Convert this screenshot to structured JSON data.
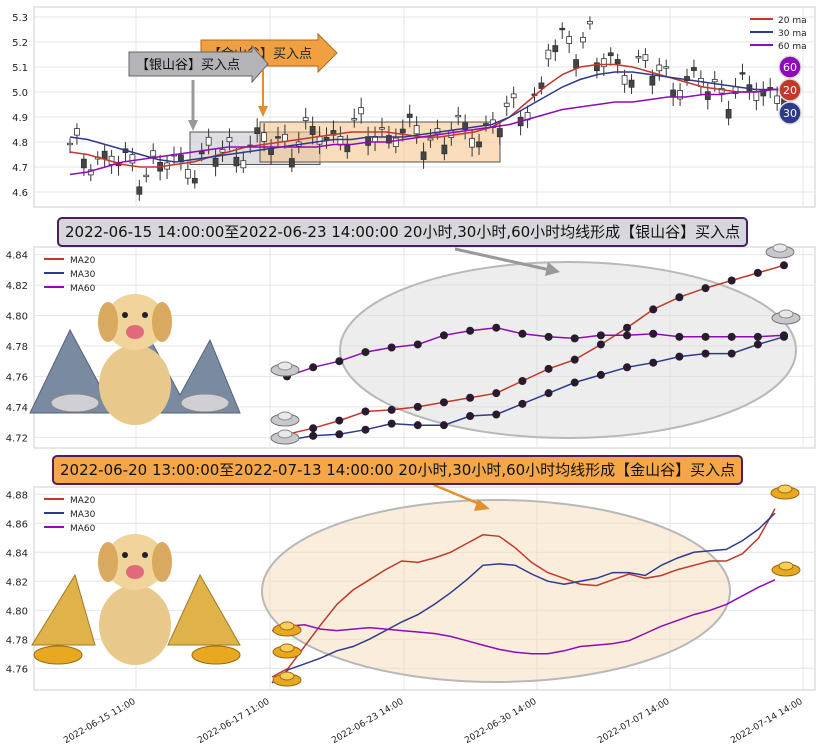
{
  "top_chart": {
    "legend": [
      "20 ma",
      "30 ma",
      "60 ma"
    ],
    "badges": [
      "60",
      "20",
      "30"
    ],
    "callouts": {
      "silver": "【银山谷】买入点",
      "gold": "【金山谷】买入点"
    },
    "colors": {
      "ma20": "#c0392b",
      "ma30": "#2e3a8c",
      "ma60": "#8e0bb8",
      "silver_box": "#cfcfd6",
      "gold_box": "#f5c68f"
    }
  },
  "silver_panel": {
    "banner": "2022-06-15 14:00:00至2022-06-23 14:00:00 20小时,30小时,60小时均线形成【银山谷】买入点",
    "legend": [
      "MA20",
      "MA30",
      "MA60"
    ]
  },
  "gold_panel": {
    "banner": "2022-06-20 13:00:00至2022-07-13 14:00:00 20小时,30小时,60小时均线形成【金山谷】买入点",
    "legend": [
      "MA20",
      "MA30",
      "MA60"
    ]
  },
  "x_axis_labels": [
    "2022-06-15 11:00",
    "2022-06-17 11:00",
    "2022-06-23 14:00",
    "2022-06-30 14:00",
    "2022-07-07 14:00",
    "2022-07-14 14:00"
  ],
  "chart_data": [
    {
      "type": "candlestick",
      "yticks": [
        4.6,
        4.7,
        4.8,
        4.9,
        5.0,
        5.1,
        5.2,
        5.3
      ],
      "ylim": [
        4.54,
        5.34
      ],
      "series": [
        {
          "name": "20 ma",
          "values": [
            4.76,
            4.75,
            4.73,
            4.71,
            4.7,
            4.7,
            4.71,
            4.72,
            4.74,
            4.76,
            4.78,
            4.79,
            4.8,
            4.81,
            4.82,
            4.83,
            4.84,
            4.84,
            4.84,
            4.83,
            4.82,
            4.82,
            4.83,
            4.84,
            4.86,
            4.9,
            4.96,
            5.02,
            5.07,
            5.1,
            5.11,
            5.11,
            5.1,
            5.08,
            5.06,
            5.04,
            5.02,
            5.01,
            5.0,
            5.0,
            5.01,
            5.01
          ]
        },
        {
          "name": "30 ma",
          "values": [
            4.82,
            4.81,
            4.79,
            4.77,
            4.75,
            4.73,
            4.72,
            4.73,
            4.74,
            4.75,
            4.76,
            4.77,
            4.78,
            4.79,
            4.8,
            4.81,
            4.81,
            4.82,
            4.82,
            4.82,
            4.83,
            4.84,
            4.85,
            4.86,
            4.87,
            4.9,
            4.94,
            4.98,
            5.02,
            5.05,
            5.07,
            5.08,
            5.08,
            5.07,
            5.06,
            5.05,
            5.04,
            5.03,
            5.02,
            5.01,
            5.01,
            5.01
          ]
        },
        {
          "name": "60 ma",
          "values": [
            4.67,
            4.68,
            4.7,
            4.72,
            4.73,
            4.74,
            4.75,
            4.76,
            4.77,
            4.78,
            4.78,
            4.78,
            4.78,
            4.78,
            4.78,
            4.79,
            4.79,
            4.8,
            4.8,
            4.81,
            4.82,
            4.83,
            4.84,
            4.85,
            4.86,
            4.87,
            4.89,
            4.91,
            4.93,
            4.94,
            4.95,
            4.96,
            4.96,
            4.97,
            4.98,
            4.98,
            4.99,
            4.99,
            5.0,
            5.0,
            5.01,
            5.01
          ]
        }
      ]
    },
    {
      "type": "line",
      "yticks": [
        4.72,
        4.74,
        4.76,
        4.78,
        4.8,
        4.82,
        4.84
      ],
      "ylim": [
        4.713,
        4.845
      ],
      "series": [
        {
          "name": "MA20",
          "values": [
            4.722,
            4.726,
            4.731,
            4.737,
            4.738,
            4.74,
            4.743,
            4.746,
            4.749,
            4.757,
            4.765,
            4.771,
            4.781,
            4.792,
            4.804,
            4.812,
            4.818,
            4.823,
            4.828,
            4.833
          ]
        },
        {
          "name": "MA30",
          "values": [
            4.718,
            4.721,
            4.722,
            4.725,
            4.729,
            4.728,
            4.728,
            4.734,
            4.735,
            4.742,
            4.749,
            4.756,
            4.761,
            4.766,
            4.769,
            4.773,
            4.775,
            4.775,
            4.781,
            4.786
          ]
        },
        {
          "name": "MA60",
          "values": [
            4.76,
            4.766,
            4.77,
            4.776,
            4.779,
            4.781,
            4.787,
            4.79,
            4.792,
            4.788,
            4.786,
            4.785,
            4.787,
            4.787,
            4.788,
            4.786,
            4.786,
            4.786,
            4.786,
            4.787
          ]
        }
      ]
    },
    {
      "type": "line",
      "yticks": [
        4.76,
        4.78,
        4.8,
        4.82,
        4.84,
        4.86,
        4.88
      ],
      "ylim": [
        4.745,
        4.885
      ],
      "series": [
        {
          "name": "MA20",
          "values": [
            4.754,
            4.76,
            4.775,
            4.79,
            4.804,
            4.814,
            4.821,
            4.828,
            4.834,
            4.833,
            4.836,
            4.84,
            4.846,
            4.852,
            4.851,
            4.843,
            4.833,
            4.826,
            4.822,
            4.818,
            4.817,
            4.821,
            4.825,
            4.822,
            4.824,
            4.828,
            4.831,
            4.834,
            4.834,
            4.839,
            4.85,
            4.87
          ]
        },
        {
          "name": "MA30",
          "values": [
            4.75,
            4.759,
            4.763,
            4.767,
            4.772,
            4.775,
            4.78,
            4.786,
            4.792,
            4.797,
            4.804,
            4.812,
            4.821,
            4.831,
            4.832,
            4.831,
            4.825,
            4.82,
            4.818,
            4.82,
            4.822,
            4.826,
            4.826,
            4.824,
            4.831,
            4.836,
            4.84,
            4.841,
            4.842,
            4.848,
            4.856,
            4.867
          ]
        },
        {
          "name": "MA60",
          "values": [
            4.786,
            4.789,
            4.79,
            4.787,
            4.786,
            4.787,
            4.788,
            4.787,
            4.786,
            4.785,
            4.784,
            4.782,
            4.779,
            4.776,
            4.773,
            4.771,
            4.77,
            4.77,
            4.772,
            4.775,
            4.776,
            4.777,
            4.779,
            4.784,
            4.789,
            4.793,
            4.797,
            4.8,
            4.804,
            4.81,
            4.816,
            4.821
          ]
        }
      ]
    }
  ]
}
